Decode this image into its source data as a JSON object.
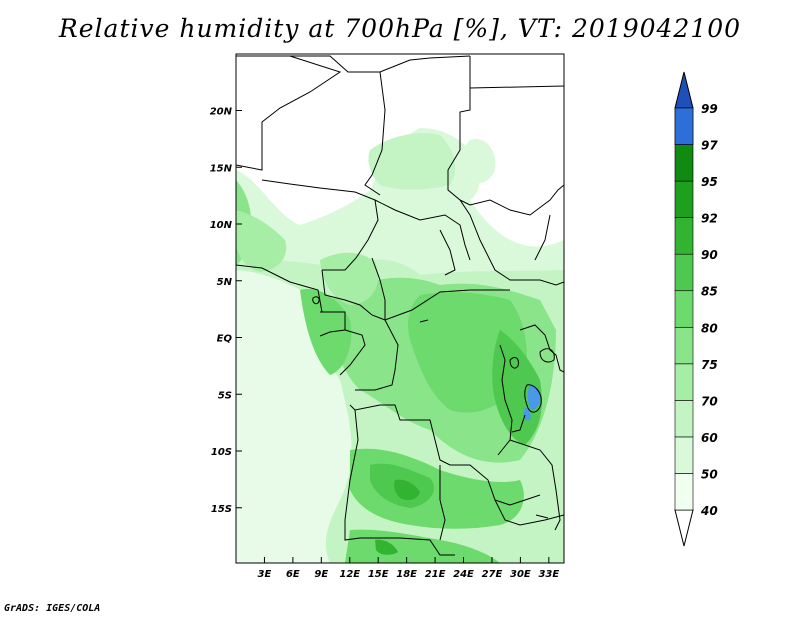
{
  "title": "Relative humidity at 700hPa [%], VT: 2019042100",
  "credit": "GrADS: IGES/COLA",
  "map": {
    "lat_ticks": [
      {
        "label": "20N",
        "value": 20
      },
      {
        "label": "15N",
        "value": 15
      },
      {
        "label": "10N",
        "value": 10
      },
      {
        "label": "5N",
        "value": 5
      },
      {
        "label": "EQ",
        "value": 0
      },
      {
        "label": "5S",
        "value": -5
      },
      {
        "label": "10S",
        "value": -10
      },
      {
        "label": "15S",
        "value": -15
      }
    ],
    "lon_ticks": [
      {
        "label": "3E",
        "value": 3
      },
      {
        "label": "6E",
        "value": 6
      },
      {
        "label": "9E",
        "value": 9
      },
      {
        "label": "12E",
        "value": 12
      },
      {
        "label": "15E",
        "value": 15
      },
      {
        "label": "18E",
        "value": 18
      },
      {
        "label": "21E",
        "value": 21
      },
      {
        "label": "24E",
        "value": 24
      },
      {
        "label": "27E",
        "value": 27
      },
      {
        "label": "30E",
        "value": 30
      },
      {
        "label": "33E",
        "value": 33
      }
    ]
  },
  "colorbar": {
    "levels": [
      {
        "label": "40",
        "color": "#f0fff0"
      },
      {
        "label": "50",
        "color": "#daf8da"
      },
      {
        "label": "60",
        "color": "#c4f4c4"
      },
      {
        "label": "70",
        "color": "#a6eea6"
      },
      {
        "label": "75",
        "color": "#8ae48a"
      },
      {
        "label": "80",
        "color": "#6cda6c"
      },
      {
        "label": "85",
        "color": "#4ec84e"
      },
      {
        "label": "90",
        "color": "#32b432"
      },
      {
        "label": "92",
        "color": "#1ea01e"
      },
      {
        "label": "95",
        "color": "#108a10"
      },
      {
        "label": "97",
        "color": "#4a98ea"
      },
      {
        "label": "99",
        "color": "#2c6fd8"
      }
    ],
    "top_color": "#1f4fb8",
    "bottom_color": "#ffffff"
  }
}
